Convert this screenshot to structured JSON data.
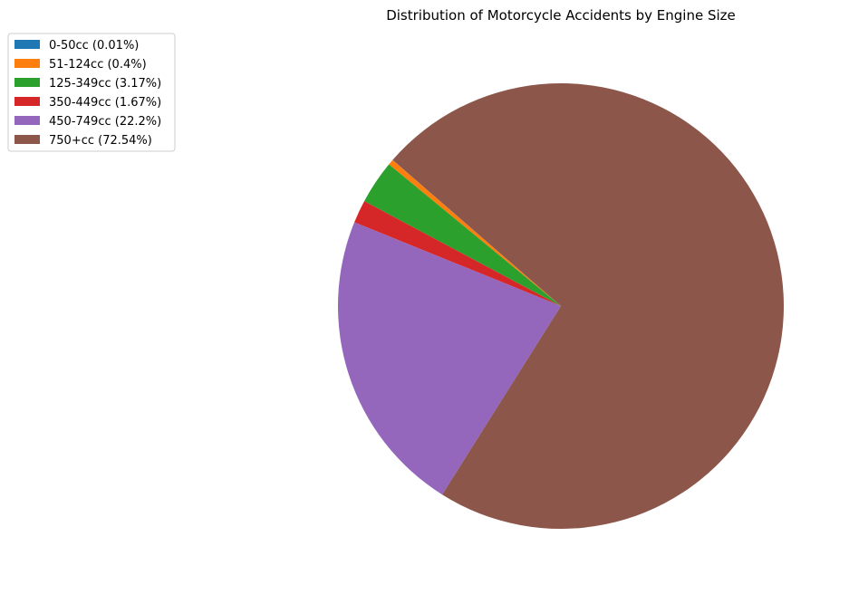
{
  "chart_data": {
    "type": "pie",
    "title": "Distribution of Motorcycle Accidents by Engine Size",
    "legend_position": "upper-left",
    "start_angle_deg": 139,
    "direction": "counterclockwise",
    "slices": [
      {
        "label": "0-50cc (0.01%)",
        "value": 0.01,
        "color": "#1f77b4"
      },
      {
        "label": "51-124cc (0.4%)",
        "value": 0.4,
        "color": "#ff7f0e"
      },
      {
        "label": "125-349cc (3.17%)",
        "value": 3.17,
        "color": "#2ca02c"
      },
      {
        "label": "350-449cc (1.67%)",
        "value": 1.67,
        "color": "#d62728"
      },
      {
        "label": "450-749cc (22.2%)",
        "value": 22.2,
        "color": "#9467bd"
      },
      {
        "label": "750+cc (72.54%)",
        "value": 72.54,
        "color": "#8c564b"
      }
    ]
  }
}
